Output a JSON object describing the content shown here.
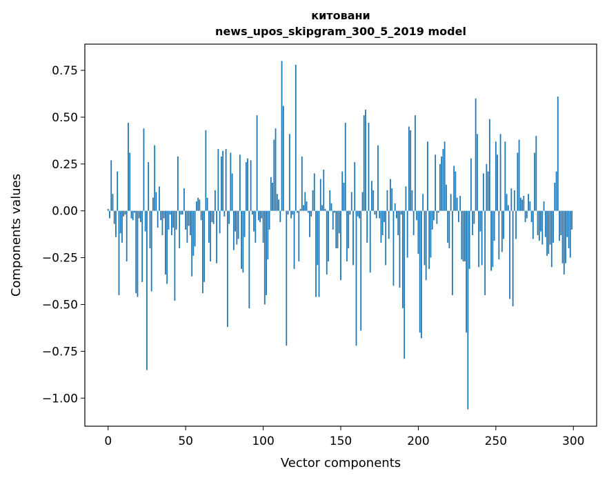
{
  "chart_data": {
    "type": "bar",
    "title": "китовани",
    "subtitle": "news_upos_skipgram_300_5_2019 model",
    "xlabel": "Vector components",
    "ylabel": "Components values",
    "xlim": [
      -15,
      315
    ],
    "ylim": [
      -1.15,
      0.89
    ],
    "xticks": [
      0,
      50,
      100,
      150,
      200,
      250,
      300
    ],
    "yticks": [
      -1.0,
      -0.75,
      -0.5,
      -0.25,
      0.0,
      0.25,
      0.5,
      0.75
    ],
    "yticklabels": [
      "−1.00",
      "−0.75",
      "−0.50",
      "−0.25",
      "0.00",
      "0.25",
      "0.50",
      "0.75"
    ],
    "grid": false,
    "bar_color": "#1f77b4",
    "x": "indices 0..299",
    "values": [
      0.01,
      -0.04,
      0.27,
      0.09,
      -0.07,
      -0.14,
      0.21,
      -0.45,
      -0.12,
      -0.17,
      -0.03,
      -0.02,
      -0.27,
      0.47,
      0.31,
      -0.04,
      -0.05,
      -0.01,
      -0.44,
      -0.46,
      -0.04,
      -0.06,
      -0.38,
      0.44,
      -0.11,
      -0.85,
      0.26,
      -0.2,
      -0.43,
      0.07,
      0.35,
      0.1,
      -0.09,
      0.13,
      -0.05,
      -0.13,
      -0.04,
      -0.34,
      -0.39,
      -0.1,
      -0.02,
      -0.13,
      -0.09,
      -0.48,
      -0.1,
      0.29,
      -0.2,
      -0.02,
      -0.02,
      0.12,
      -0.1,
      -0.17,
      -0.08,
      -0.13,
      -0.35,
      -0.24,
      -0.19,
      0.05,
      0.07,
      0.06,
      -0.05,
      -0.44,
      -0.38,
      0.43,
      0.07,
      -0.17,
      -0.27,
      -0.06,
      -0.07,
      0.11,
      -0.28,
      0.33,
      -0.12,
      0.29,
      0.32,
      -0.03,
      0.33,
      -0.62,
      -0.07,
      0.31,
      0.2,
      -0.21,
      -0.11,
      -0.18,
      -0.15,
      0.3,
      -0.31,
      -0.33,
      -0.14,
      0.26,
      0.28,
      -0.52,
      0.27,
      -0.02,
      -0.11,
      -0.17,
      0.51,
      -0.05,
      -0.06,
      -0.04,
      -0.17,
      -0.5,
      -0.45,
      -0.26,
      -0.1,
      0.18,
      0.15,
      0.38,
      0.44,
      0.09,
      0.06,
      -0.06,
      0.8,
      0.56,
      0.0,
      -0.72,
      -0.02,
      0.41,
      -0.04,
      -0.02,
      -0.31,
      0.78,
      -0.01,
      -0.27,
      0.01,
      0.29,
      0.03,
      0.1,
      0.05,
      -0.01,
      -0.14,
      -0.03,
      0.11,
      0.2,
      -0.46,
      -0.29,
      -0.46,
      0.17,
      0.03,
      0.22,
      0.01,
      -0.34,
      -0.27,
      0.11,
      0.04,
      -0.1,
      -0.01,
      -0.2,
      -0.2,
      -0.12,
      -0.37,
      0.21,
      0.15,
      0.47,
      -0.27,
      -0.2,
      -0.02,
      0.1,
      -0.29,
      0.26,
      -0.72,
      -0.03,
      -0.04,
      -0.64,
      0.1,
      0.51,
      0.54,
      -0.17,
      0.47,
      -0.33,
      0.16,
      0.11,
      -0.02,
      -0.04,
      0.35,
      -0.04,
      -0.17,
      -0.13,
      -0.06,
      -0.29,
      0.11,
      -0.15,
      0.17,
      0.12,
      -0.4,
      0.04,
      -0.04,
      -0.13,
      -0.41,
      -0.02,
      -0.52,
      -0.79,
      0.13,
      -0.25,
      0.45,
      0.43,
      0.11,
      -0.13,
      0.51,
      -0.05,
      -0.23,
      -0.65,
      -0.68,
      0.09,
      -0.29,
      -0.37,
      0.37,
      -0.31,
      -0.25,
      -0.1,
      -0.05,
      0.3,
      -0.07,
      -0.01,
      0.25,
      0.29,
      0.33,
      0.37,
      0.14,
      -0.17,
      -0.2,
      0.09,
      -0.45,
      0.24,
      0.21,
      0.07,
      -0.06,
      0.08,
      -0.26,
      -0.27,
      -0.27,
      -0.65,
      -1.06,
      -0.31,
      0.28,
      -0.13,
      -0.07,
      0.6,
      0.41,
      -0.3,
      -0.11,
      -0.29,
      0.2,
      -0.45,
      0.25,
      0.21,
      0.49,
      -0.32,
      -0.3,
      -0.16,
      0.37,
      0.3,
      -0.26,
      0.41,
      -0.22,
      -0.15,
      0.37,
      0.09,
      0.03,
      -0.47,
      0.12,
      -0.51,
      0.11,
      -0.15,
      0.31,
      0.38,
      0.07,
      0.06,
      0.08,
      -0.06,
      -0.04,
      0.09,
      0.05,
      -0.06,
      -0.15,
      0.31,
      0.4,
      -0.13,
      -0.16,
      -0.11,
      -0.18,
      0.05,
      -0.14,
      -0.24,
      -0.23,
      -0.18,
      -0.3,
      -0.17,
      0.15,
      0.21,
      0.61,
      -0.16,
      -0.13,
      -0.28,
      -0.34,
      -0.28,
      -0.14,
      -0.2,
      -0.25,
      -0.1
    ]
  }
}
